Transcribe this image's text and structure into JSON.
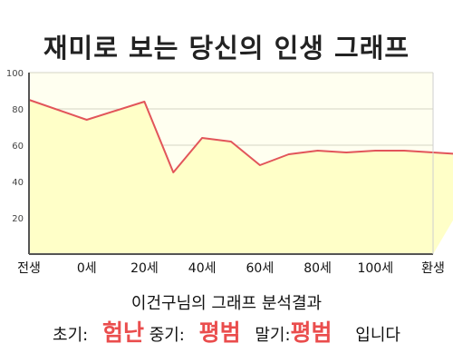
{
  "chart_data": {
    "type": "area",
    "title": "재미로 보는 당신의 인생 그래프",
    "x": [
      0,
      10,
      20,
      25,
      30,
      35,
      40,
      45,
      50,
      55,
      60,
      65,
      70,
      75,
      80
    ],
    "x_ticks": [
      {
        "label": "전생",
        "x": 0
      },
      {
        "label": "0세",
        "x": 10
      },
      {
        "label": "20세",
        "x": 20
      },
      {
        "label": "40세",
        "x": 30
      },
      {
        "label": "60세",
        "x": 40
      },
      {
        "label": "80세",
        "x": 50
      },
      {
        "label": "100세",
        "x": 60
      },
      {
        "label": "환생",
        "x": 70
      }
    ],
    "series": [
      {
        "values": [
          85,
          74,
          84,
          45,
          64,
          62,
          49,
          55,
          57,
          56,
          57,
          57,
          56,
          55,
          54
        ]
      }
    ],
    "y_ticks": [
      20,
      40,
      60,
      80,
      100
    ],
    "ylim": [
      0,
      100
    ],
    "xlim": [
      0,
      70
    ],
    "grid": true,
    "colors": {
      "line": "#e2555a",
      "fill": "#ffffc8",
      "plot_bg": "#fffff0",
      "grid": "#d4d4c4",
      "axis": "#555555"
    }
  },
  "caption": "이건구님의 그래프 분석결과",
  "result": {
    "early_label": "초기:",
    "early_value": "험난",
    "mid_label": "중기:",
    "mid_value": "평범",
    "late_label": "말기:",
    "late_value": "평범",
    "suffix": "입니다"
  }
}
